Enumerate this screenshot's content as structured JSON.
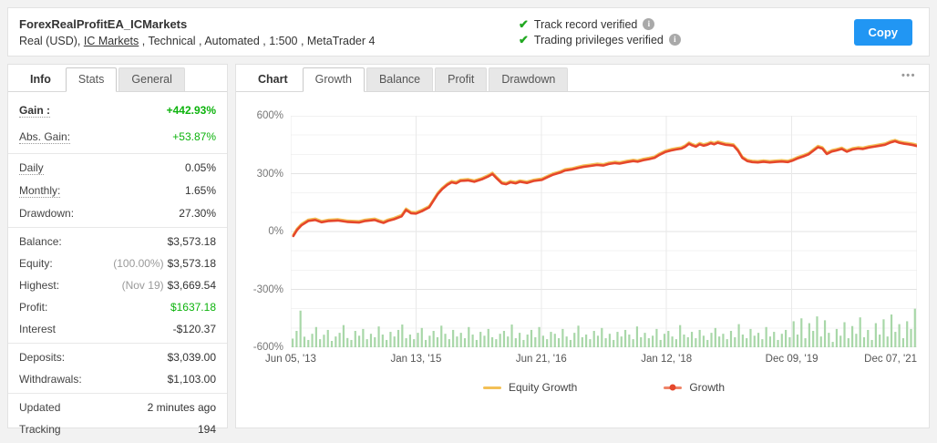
{
  "header": {
    "title": "ForexRealProfitEA_ICMarkets",
    "subtitle_prefix": "Real (USD), ",
    "broker_link": "IC Markets",
    "subtitle_suffix": " , Technical , Automated , 1:500 , MetaTrader 4",
    "verifications": [
      {
        "label": "Track record verified"
      },
      {
        "label": "Trading privileges verified"
      }
    ],
    "copy_button": "Copy"
  },
  "colors": {
    "green_value": "#0db30d",
    "check_green": "#21a821",
    "copy_blue": "#2196f3",
    "growth_line": "#e5472b",
    "equity_line": "#f3c056",
    "bars_green": "#a8d7a8"
  },
  "stats_panel": {
    "tabs": [
      {
        "label": "Info",
        "active": false,
        "plain": true
      },
      {
        "label": "Stats",
        "active": true,
        "plain": false
      },
      {
        "label": "General",
        "active": false,
        "plain": false
      }
    ],
    "groups": [
      {
        "lead": true,
        "rows": [
          {
            "label": "Gain :",
            "value": "+442.93%",
            "dotted": true,
            "bold": true,
            "green": true
          },
          {
            "label": "Abs. Gain:",
            "value": "+53.87%",
            "dotted": true,
            "green": true
          }
        ]
      },
      {
        "rows": [
          {
            "label": "Daily",
            "value": "0.05%",
            "dotted": true
          },
          {
            "label": "Monthly:",
            "value": "1.65%",
            "dotted": true
          },
          {
            "label": "Drawdown:",
            "value": "27.30%"
          }
        ]
      },
      {
        "rows": [
          {
            "label": "Balance:",
            "value": "$3,573.18"
          },
          {
            "label": "Equity:",
            "note": "(100.00%)",
            "value": "$3,573.18"
          },
          {
            "label": "Highest:",
            "note": "(Nov 19)",
            "value": "$3,669.54"
          },
          {
            "label": "Profit:",
            "value": "$1637.18",
            "green": true
          },
          {
            "label": "Interest",
            "value": "-$120.37"
          }
        ]
      },
      {
        "rows": [
          {
            "label": "Deposits:",
            "value": "$3,039.00"
          },
          {
            "label": "Withdrawals:",
            "value": "$1,103.00"
          }
        ]
      },
      {
        "rows": [
          {
            "label": "Updated",
            "value": "2 minutes ago"
          },
          {
            "label": "Tracking",
            "value": "194"
          }
        ]
      }
    ]
  },
  "chart_panel": {
    "tabs": [
      {
        "label": "Chart",
        "active": false,
        "plain": true
      },
      {
        "label": "Growth",
        "active": true,
        "plain": false
      },
      {
        "label": "Balance",
        "active": false,
        "plain": false
      },
      {
        "label": "Profit",
        "active": false,
        "plain": false
      },
      {
        "label": "Drawdown",
        "active": false,
        "plain": false
      }
    ],
    "menu_ellipsis": "•••"
  },
  "chart_data": {
    "type": "line",
    "title": "",
    "ylabel": "",
    "xlabel": "",
    "y_unit": "%",
    "ylim": [
      -600,
      600
    ],
    "y_ticks": [
      "600%",
      "300%",
      "0%",
      "-300%",
      "-600%"
    ],
    "y_tick_values": [
      600,
      300,
      0,
      -300,
      -600
    ],
    "x_tick_labels": [
      "Jun 05, '13",
      "Jan 13, '15",
      "Jun 21, '16",
      "Jan 12, '18",
      "Dec 09, '19",
      "Dec 07, '21"
    ],
    "grid": true,
    "legend_position": "bottom",
    "legend": [
      {
        "label": "Equity Growth",
        "color": "#f3c056",
        "marker": "line"
      },
      {
        "label": "Growth",
        "color": "#e5472b",
        "marker": "line-dot"
      }
    ],
    "series": [
      {
        "name": "Growth",
        "color": "#e5472b",
        "final_value_pct": 442.93,
        "points": [
          [
            0.004,
            -23
          ],
          [
            0.01,
            8
          ],
          [
            0.017,
            32
          ],
          [
            0.028,
            55
          ],
          [
            0.039,
            60
          ],
          [
            0.049,
            48
          ],
          [
            0.061,
            55
          ],
          [
            0.075,
            57
          ],
          [
            0.09,
            50
          ],
          [
            0.109,
            47
          ],
          [
            0.119,
            55
          ],
          [
            0.134,
            60
          ],
          [
            0.141,
            52
          ],
          [
            0.148,
            45
          ],
          [
            0.155,
            55
          ],
          [
            0.165,
            64
          ],
          [
            0.177,
            79
          ],
          [
            0.184,
            112
          ],
          [
            0.192,
            95
          ],
          [
            0.2,
            93
          ],
          [
            0.209,
            105
          ],
          [
            0.221,
            125
          ],
          [
            0.228,
            160
          ],
          [
            0.235,
            195
          ],
          [
            0.242,
            220
          ],
          [
            0.25,
            242
          ],
          [
            0.257,
            255
          ],
          [
            0.264,
            250
          ],
          [
            0.271,
            262
          ],
          [
            0.283,
            265
          ],
          [
            0.293,
            258
          ],
          [
            0.305,
            270
          ],
          [
            0.315,
            285
          ],
          [
            0.322,
            298
          ],
          [
            0.329,
            275
          ],
          [
            0.337,
            250
          ],
          [
            0.344,
            245
          ],
          [
            0.351,
            255
          ],
          [
            0.359,
            250
          ],
          [
            0.366,
            258
          ],
          [
            0.377,
            252
          ],
          [
            0.388,
            262
          ],
          [
            0.401,
            268
          ],
          [
            0.409,
            280
          ],
          [
            0.419,
            295
          ],
          [
            0.43,
            305
          ],
          [
            0.438,
            316
          ],
          [
            0.45,
            322
          ],
          [
            0.46,
            330
          ],
          [
            0.467,
            335
          ],
          [
            0.479,
            340
          ],
          [
            0.489,
            345
          ],
          [
            0.499,
            342
          ],
          [
            0.508,
            350
          ],
          [
            0.518,
            355
          ],
          [
            0.525,
            352
          ],
          [
            0.537,
            360
          ],
          [
            0.547,
            365
          ],
          [
            0.554,
            362
          ],
          [
            0.563,
            370
          ],
          [
            0.572,
            375
          ],
          [
            0.581,
            382
          ],
          [
            0.589,
            398
          ],
          [
            0.598,
            412
          ],
          [
            0.607,
            420
          ],
          [
            0.615,
            425
          ],
          [
            0.624,
            430
          ],
          [
            0.63,
            440
          ],
          [
            0.636,
            455
          ],
          [
            0.641,
            447
          ],
          [
            0.647,
            440
          ],
          [
            0.653,
            452
          ],
          [
            0.659,
            445
          ],
          [
            0.665,
            450
          ],
          [
            0.671,
            458
          ],
          [
            0.676,
            452
          ],
          [
            0.682,
            460
          ],
          [
            0.688,
            455
          ],
          [
            0.694,
            450
          ],
          [
            0.7,
            448
          ],
          [
            0.707,
            445
          ],
          [
            0.714,
            420
          ],
          [
            0.721,
            382
          ],
          [
            0.729,
            365
          ],
          [
            0.737,
            360
          ],
          [
            0.746,
            358
          ],
          [
            0.755,
            362
          ],
          [
            0.765,
            358
          ],
          [
            0.775,
            361
          ],
          [
            0.784,
            363
          ],
          [
            0.794,
            360
          ],
          [
            0.801,
            367
          ],
          [
            0.81,
            380
          ],
          [
            0.819,
            390
          ],
          [
            0.827,
            400
          ],
          [
            0.835,
            420
          ],
          [
            0.842,
            437
          ],
          [
            0.849,
            430
          ],
          [
            0.856,
            402
          ],
          [
            0.864,
            415
          ],
          [
            0.871,
            420
          ],
          [
            0.88,
            428
          ],
          [
            0.888,
            414
          ],
          [
            0.897,
            425
          ],
          [
            0.906,
            430
          ],
          [
            0.914,
            428
          ],
          [
            0.923,
            435
          ],
          [
            0.932,
            440
          ],
          [
            0.941,
            445
          ],
          [
            0.949,
            450
          ],
          [
            0.958,
            462
          ],
          [
            0.965,
            468
          ],
          [
            0.972,
            460
          ],
          [
            0.98,
            455
          ],
          [
            0.987,
            452
          ],
          [
            0.994,
            448
          ],
          [
            1.0,
            443
          ]
        ]
      },
      {
        "name": "Equity Growth",
        "color": "#f3c056",
        "derived_from": "Growth",
        "offset_pct": 7
      }
    ],
    "bars": {
      "name": "volume",
      "color": "#a8d7a8",
      "baseline_pct": -600,
      "heights_pct": [
        45,
        85,
        190,
        55,
        38,
        70,
        105,
        42,
        65,
        90,
        33,
        56,
        75,
        115,
        48,
        38,
        85,
        60,
        95,
        42,
        70,
        52,
        108,
        66,
        38,
        80,
        56,
        90,
        118,
        47,
        66,
        42,
        75,
        100,
        38,
        60,
        85,
        52,
        112,
        70,
        42,
        90,
        56,
        75,
        47,
        105,
        66,
        38,
        80,
        60,
        95,
        52,
        42,
        70,
        85,
        56,
        118,
        47,
        75,
        38,
        66,
        90,
        52,
        105,
        60,
        42,
        80,
        70,
        47,
        95,
        56,
        38,
        75,
        112,
        52,
        66,
        42,
        85,
        60,
        100,
        47,
        70,
        38,
        80,
        56,
        90,
        66,
        42,
        108,
        52,
        75,
        47,
        60,
        95,
        38,
        70,
        85,
        56,
        42,
        115,
        66,
        52,
        80,
        47,
        90,
        60,
        38,
        75,
        100,
        56,
        70,
        42,
        85,
        52,
        120,
        66,
        47,
        95,
        60,
        75,
        42,
        105,
        56,
        80,
        38,
        70,
        90,
        52,
        135,
        66,
        150,
        47,
        125,
        85,
        160,
        56,
        140,
        75,
        28,
        95,
        60,
        130,
        47,
        110,
        70,
        155,
        52,
        90,
        38,
        125,
        66,
        145,
        56,
        170,
        80,
        120,
        47,
        135,
        95,
        200
      ]
    }
  }
}
